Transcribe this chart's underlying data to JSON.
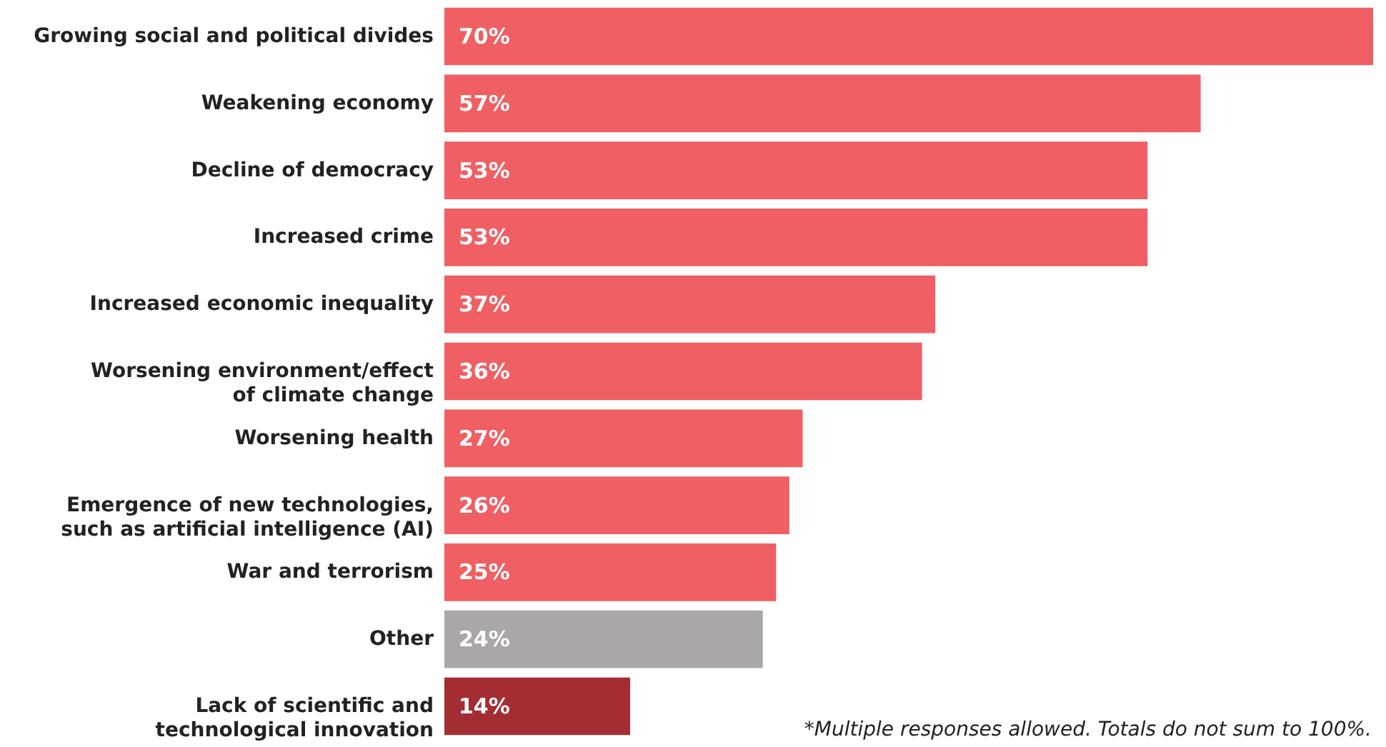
{
  "chart_data": {
    "type": "bar",
    "orientation": "horizontal",
    "categories": [
      "Growing social and political divides",
      "Weakening economy",
      "Decline of democracy",
      "Increased crime",
      "Increased economic inequality",
      "Worsening environment/effect\nof climate change",
      "Worsening health",
      "Emergence of new technologies,\nsuch as artificial intelligence (AI)",
      "War and terrorism",
      "Other",
      "Lack of scientific and\ntechnological innovation"
    ],
    "values": [
      70,
      57,
      53,
      53,
      37,
      36,
      27,
      26,
      25,
      24,
      14
    ],
    "colors": [
      "#ef5f63",
      "#ef5f63",
      "#ef5f63",
      "#ef5f63",
      "#ef5f63",
      "#ef5f63",
      "#ef5f63",
      "#ef5f63",
      "#ef5f63",
      "#aba7a6",
      "#a32d33"
    ],
    "value_labels": [
      "70%",
      "57%",
      "53%",
      "53%",
      "37%",
      "36%",
      "27%",
      "26%",
      "25%",
      "24%",
      "14%"
    ],
    "annotations": [
      "*Multiple responses allowed. Totals do not sum to 100%."
    ]
  }
}
